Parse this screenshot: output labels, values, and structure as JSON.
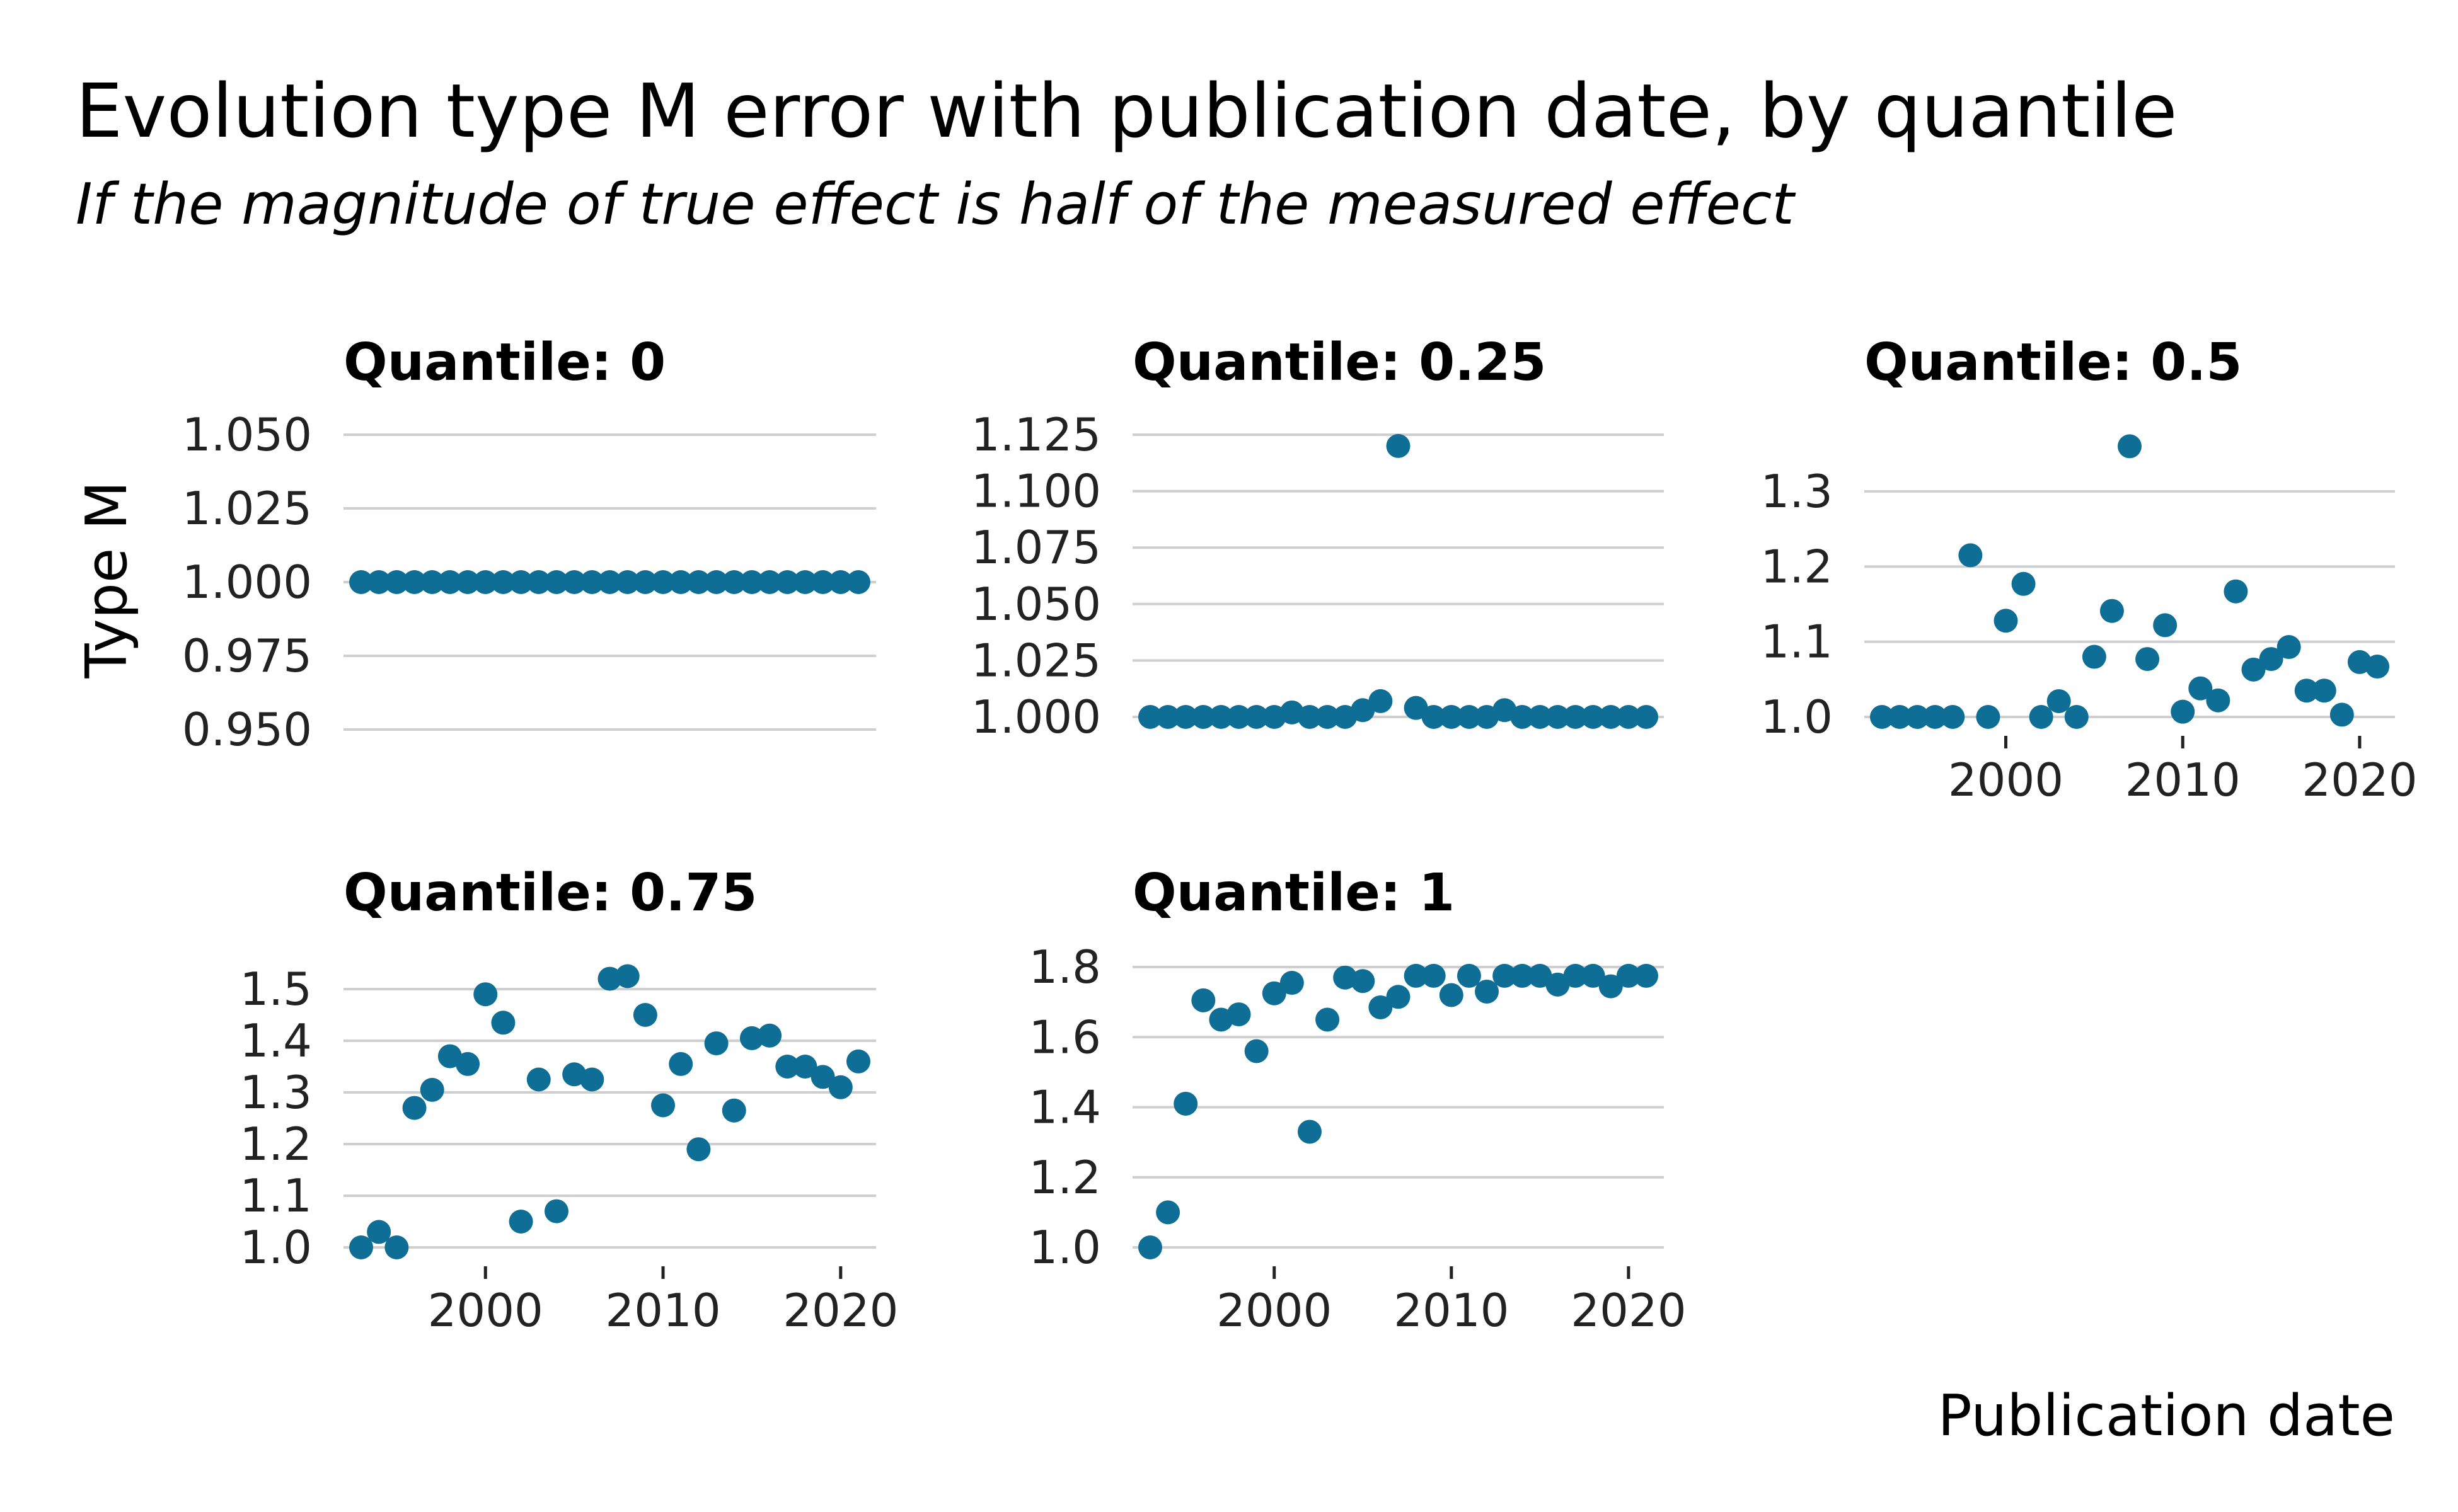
{
  "title": "Evolution type M error with publication date, by quantile",
  "subtitle": "If the magnitude of true effect is half of the measured effect",
  "ylabel": "Type M",
  "xlabel": "Publication date",
  "colors": {
    "points": "#0e6e96",
    "grid": "#cfcfcf"
  },
  "chart_data": {
    "type": "scatter",
    "title": "Evolution type M error with publication date, by quantile",
    "subtitle": "If the magnitude of true effect is half of the measured effect",
    "xlabel": "Publication date",
    "ylabel": "Type M",
    "grid": "horizontal major gridlines",
    "facets": [
      {
        "label": "Quantile: 0",
        "xlim": [
          1993,
          2021
        ],
        "ylim": [
          0.95,
          1.05
        ],
        "yticks": [
          "0.950",
          "0.975",
          "1.000",
          "1.025",
          "1.050"
        ],
        "xticks": [],
        "x": [
          1993,
          1994,
          1995,
          1996,
          1997,
          1998,
          1999,
          2000,
          2001,
          2002,
          2003,
          2004,
          2005,
          2006,
          2007,
          2008,
          2009,
          2010,
          2011,
          2012,
          2013,
          2014,
          2015,
          2016,
          2017,
          2018,
          2019,
          2020,
          2021
        ],
        "y": [
          1,
          1,
          1,
          1,
          1,
          1,
          1,
          1,
          1,
          1,
          1,
          1,
          1,
          1,
          1,
          1,
          1,
          1,
          1,
          1,
          1,
          1,
          1,
          1,
          1,
          1,
          1,
          1,
          1
        ]
      },
      {
        "label": "Quantile: 0.25",
        "xlim": [
          1993,
          2021
        ],
        "ylim": [
          1.0,
          1.125
        ],
        "yticks": [
          "1.000",
          "1.025",
          "1.050",
          "1.075",
          "1.100",
          "1.125"
        ],
        "xticks": [],
        "x": [
          1993,
          1994,
          1995,
          1996,
          1997,
          1998,
          1999,
          2000,
          2001,
          2002,
          2003,
          2004,
          2005,
          2006,
          2007,
          2008,
          2009,
          2010,
          2011,
          2012,
          2013,
          2014,
          2015,
          2016,
          2017,
          2018,
          2019,
          2020,
          2021
        ],
        "y": [
          1.0,
          1.0,
          1.0,
          1.0,
          1.0,
          1.0,
          1.0,
          1.0,
          1.002,
          1.0,
          1.0,
          1.0,
          1.003,
          1.007,
          1.12,
          1.004,
          1.0,
          1.0,
          1.0,
          1.0,
          1.003,
          1.0,
          1.0,
          1.0,
          1.0,
          1.0,
          1.0,
          1.0,
          1.0
        ]
      },
      {
        "label": "Quantile: 0.5",
        "xlim": [
          1993,
          2021
        ],
        "ylim": [
          1.0,
          1.3
        ],
        "yticks": [
          "1.0",
          "1.1",
          "1.2",
          "1.3"
        ],
        "xticks": [
          "2000",
          "2010",
          "2020"
        ],
        "x": [
          1993,
          1994,
          1995,
          1996,
          1997,
          1998,
          1999,
          2000,
          2001,
          2002,
          2003,
          2004,
          2005,
          2006,
          2007,
          2008,
          2009,
          2010,
          2011,
          2012,
          2013,
          2014,
          2015,
          2016,
          2017,
          2018,
          2019,
          2020,
          2021
        ],
        "y": [
          1.0,
          1.0,
          1.0,
          1.0,
          1.0,
          1.215,
          1.0,
          1.128,
          1.177,
          1.0,
          1.021,
          1.0,
          1.08,
          1.141,
          1.36,
          1.077,
          1.122,
          1.007,
          1.038,
          1.022,
          1.167,
          1.063,
          1.077,
          1.093,
          1.035,
          1.035,
          1.003,
          1.073,
          1.067
        ]
      },
      {
        "label": "Quantile: 0.75",
        "xlim": [
          1993,
          2021
        ],
        "ylim": [
          1.0,
          1.5
        ],
        "yticks": [
          "1.0",
          "1.1",
          "1.2",
          "1.3",
          "1.4",
          "1.5"
        ],
        "xticks": [
          "2000",
          "2010",
          "2020"
        ],
        "x": [
          1993,
          1994,
          1995,
          1996,
          1997,
          1998,
          1999,
          2000,
          2001,
          2002,
          2003,
          2004,
          2005,
          2006,
          2007,
          2008,
          2009,
          2010,
          2011,
          2012,
          2013,
          2014,
          2015,
          2016,
          2017,
          2018,
          2019,
          2020,
          2021
        ],
        "y": [
          1.0,
          1.03,
          1.0,
          1.27,
          1.305,
          1.37,
          1.355,
          1.49,
          1.435,
          1.05,
          1.325,
          1.07,
          1.335,
          1.325,
          1.52,
          1.525,
          1.45,
          1.275,
          1.355,
          1.19,
          1.395,
          1.265,
          1.405,
          1.41,
          1.35,
          1.35,
          1.33,
          1.31,
          1.36
        ]
      },
      {
        "label": "Quantile: 1",
        "xlim": [
          1993,
          2021
        ],
        "ylim": [
          1.0,
          1.8
        ],
        "yticks": [
          "1.0",
          "1.2",
          "1.4",
          "1.6",
          "1.8"
        ],
        "xticks": [
          "2000",
          "2010",
          "2020"
        ],
        "x": [
          1993,
          1994,
          1995,
          1996,
          1997,
          1998,
          1999,
          2000,
          2001,
          2002,
          2003,
          2004,
          2005,
          2006,
          2007,
          2008,
          2009,
          2010,
          2011,
          2012,
          2013,
          2014,
          2015,
          2016,
          2017,
          2018,
          2019,
          2020,
          2021
        ],
        "y": [
          1.0,
          1.1,
          1.41,
          1.705,
          1.65,
          1.665,
          1.56,
          1.725,
          1.755,
          1.33,
          1.65,
          1.77,
          1.76,
          1.685,
          1.715,
          1.775,
          1.775,
          1.72,
          1.775,
          1.73,
          1.775,
          1.775,
          1.775,
          1.75,
          1.775,
          1.775,
          1.745,
          1.775,
          1.775
        ]
      }
    ]
  }
}
